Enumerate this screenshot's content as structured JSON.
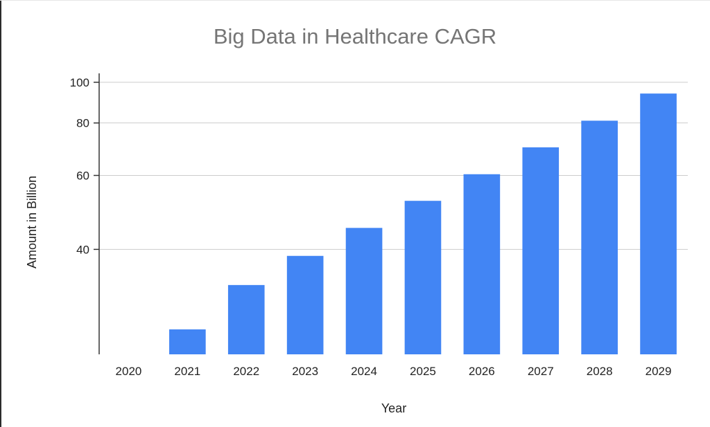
{
  "chart_data": {
    "type": "bar",
    "title": "Big Data in Healthcare CAGR",
    "xlabel": "Year",
    "ylabel": "Amount in Billion",
    "yscale": "log",
    "ylim": [
      22.5,
      105
    ],
    "yticks": [
      40,
      60,
      80,
      100
    ],
    "grid": true,
    "legend": "none",
    "bar_color": "#4285f4",
    "categories": [
      "2020",
      "2021",
      "2022",
      "2023",
      "2024",
      "2025",
      "2026",
      "2027",
      "2028",
      "2029"
    ],
    "values": [
      22.5,
      25.8,
      32.9,
      38.6,
      45.0,
      52.2,
      60.4,
      70.0,
      81.0,
      94.0
    ]
  }
}
